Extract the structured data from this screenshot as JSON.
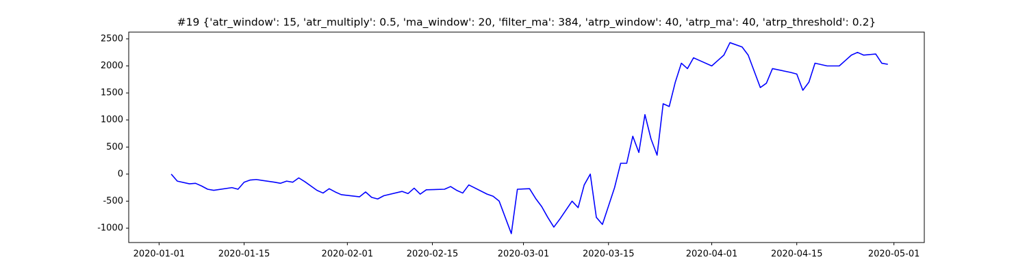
{
  "chart_data": {
    "type": "line",
    "title": "#19 {'atr_window': 15, 'atr_multiply': 0.5, 'ma_window': 20, 'filter_ma': 384, 'atrp_window': 40, 'atrp_ma': 40, 'atrp_threshold': 0.2}",
    "x": [
      "2020-01-03",
      "2020-01-04",
      "2020-01-06",
      "2020-01-07",
      "2020-01-08",
      "2020-01-09",
      "2020-01-10",
      "2020-01-13",
      "2020-01-14",
      "2020-01-15",
      "2020-01-16",
      "2020-01-17",
      "2020-01-20",
      "2020-01-21",
      "2020-01-22",
      "2020-01-23",
      "2020-01-24",
      "2020-01-25",
      "2020-01-27",
      "2020-01-28",
      "2020-01-29",
      "2020-01-30",
      "2020-01-31",
      "2020-02-03",
      "2020-02-04",
      "2020-02-05",
      "2020-02-06",
      "2020-02-07",
      "2020-02-10",
      "2020-02-11",
      "2020-02-12",
      "2020-02-13",
      "2020-02-14",
      "2020-02-17",
      "2020-02-18",
      "2020-02-19",
      "2020-02-20",
      "2020-02-21",
      "2020-02-24",
      "2020-02-25",
      "2020-02-26",
      "2020-02-27",
      "2020-02-28",
      "2020-02-29",
      "2020-03-02",
      "2020-03-03",
      "2020-03-04",
      "2020-03-05",
      "2020-03-06",
      "2020-03-07",
      "2020-03-09",
      "2020-03-10",
      "2020-03-11",
      "2020-03-12",
      "2020-03-13",
      "2020-03-14",
      "2020-03-16",
      "2020-03-17",
      "2020-03-18",
      "2020-03-19",
      "2020-03-20",
      "2020-03-21",
      "2020-03-22",
      "2020-03-23",
      "2020-03-24",
      "2020-03-25",
      "2020-03-26",
      "2020-03-27",
      "2020-03-28",
      "2020-03-29",
      "2020-03-30",
      "2020-04-01",
      "2020-04-02",
      "2020-04-03",
      "2020-04-04",
      "2020-04-06",
      "2020-04-07",
      "2020-04-08",
      "2020-04-09",
      "2020-04-10",
      "2020-04-11",
      "2020-04-14",
      "2020-04-15",
      "2020-04-16",
      "2020-04-17",
      "2020-04-18",
      "2020-04-20",
      "2020-04-22",
      "2020-04-23",
      "2020-04-24",
      "2020-04-25",
      "2020-04-26",
      "2020-04-28",
      "2020-04-29",
      "2020-04-30"
    ],
    "series": [
      {
        "color": "#0000ff",
        "values": [
          0,
          -130,
          -180,
          -170,
          -220,
          -280,
          -300,
          -250,
          -280,
          -150,
          -110,
          -100,
          -150,
          -170,
          -130,
          -150,
          -70,
          -140,
          -300,
          -350,
          -270,
          -330,
          -380,
          -420,
          -330,
          -430,
          -460,
          -400,
          -320,
          -360,
          -260,
          -370,
          -290,
          -280,
          -230,
          -300,
          -350,
          -200,
          -370,
          -410,
          -500,
          -800,
          -1100,
          -280,
          -270,
          -450,
          -600,
          -800,
          -980,
          -830,
          -500,
          -620,
          -200,
          0,
          -800,
          -930,
          -250,
          200,
          200,
          700,
          400,
          1100,
          650,
          350,
          1300,
          1250,
          1700,
          2050,
          1950,
          2150,
          2100,
          2000,
          2100,
          2200,
          2430,
          2350,
          2200,
          1900,
          1600,
          1680,
          1950,
          1880,
          1850,
          1550,
          1700,
          2050,
          2000,
          2000,
          2100,
          2200,
          2250,
          2200,
          2220,
          2050,
          2030
        ]
      }
    ],
    "xlim": [
      "2019-12-27",
      "2020-05-06"
    ],
    "xticks": [
      "2020-01-01",
      "2020-01-15",
      "2020-02-01",
      "2020-02-15",
      "2020-03-01",
      "2020-03-15",
      "2020-04-01",
      "2020-04-15",
      "2020-05-01"
    ],
    "ylim": [
      -1265,
      2625
    ],
    "yticks": [
      -1000,
      -500,
      0,
      500,
      1000,
      1500,
      2000,
      2500
    ]
  }
}
